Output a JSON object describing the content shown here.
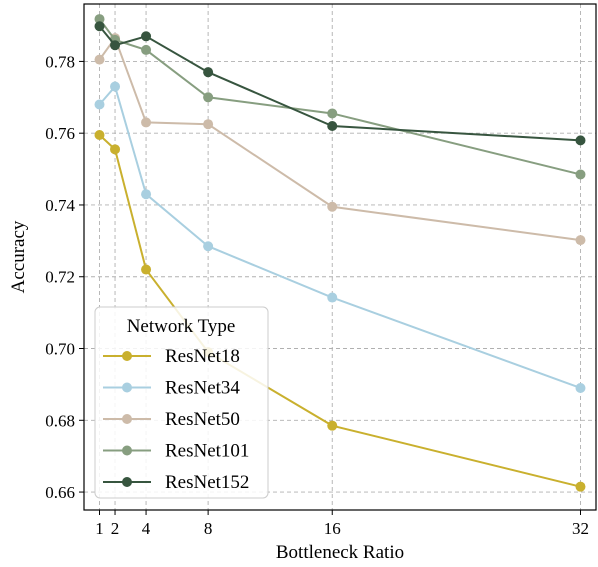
{
  "chart_data": {
    "type": "line",
    "title": "",
    "xlabel": "Bottleneck Ratio",
    "ylabel": "Accuracy",
    "x": [
      1,
      2,
      4,
      8,
      16,
      32
    ],
    "x_tick_labels": [
      "1",
      "2",
      "4",
      "8",
      "16",
      "32"
    ],
    "xlim": [
      0,
      33
    ],
    "ylim": [
      0.655,
      0.796
    ],
    "y_ticks": [
      0.66,
      0.68,
      0.7,
      0.72,
      0.74,
      0.76,
      0.78
    ],
    "y_tick_labels": [
      "0.66",
      "0.68",
      "0.70",
      "0.72",
      "0.74",
      "0.76",
      "0.78"
    ],
    "grid": true,
    "legend": {
      "title": "Network Type",
      "placement": "lower-left"
    },
    "series": [
      {
        "name": "ResNet18",
        "color": "#c9b02e",
        "values": [
          0.7595,
          0.7555,
          0.722,
          0.699,
          0.6785,
          0.6615
        ]
      },
      {
        "name": "ResNet34",
        "color": "#a9cfe0",
        "values": [
          0.768,
          0.773,
          0.743,
          0.7285,
          0.7142,
          0.689
        ]
      },
      {
        "name": "ResNet50",
        "color": "#cdbba9",
        "values": [
          0.7805,
          0.7865,
          0.763,
          0.7625,
          0.7395,
          0.7302
        ]
      },
      {
        "name": "ResNet101",
        "color": "#879e80",
        "values": [
          0.7918,
          0.786,
          0.7832,
          0.77,
          0.7655,
          0.7485
        ]
      },
      {
        "name": "ResNet152",
        "color": "#37553f",
        "values": [
          0.7898,
          0.7845,
          0.787,
          0.777,
          0.762,
          0.758
        ]
      }
    ]
  }
}
